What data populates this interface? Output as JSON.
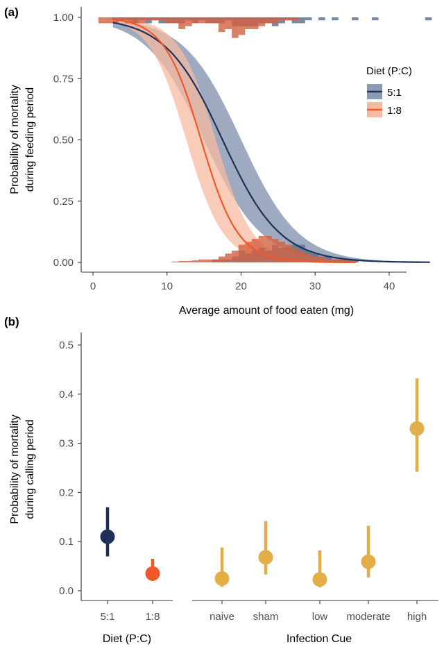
{
  "colors": {
    "diet_5_1": "#1e3059",
    "diet_5_1_ribbon": "#8c9bb5",
    "diet_1_8": "#f0582a",
    "diet_1_8_ribbon": "#f7b9a2",
    "hist_5_1": "#5f7296",
    "hist_1_8": "#d3603f",
    "infection": "#e2ae47",
    "axis": "#333333"
  },
  "chart_data": [
    {
      "panel": "(a)",
      "type": "line",
      "xlabel": "Average amount of food eaten (mg)",
      "ylabel": [
        "Probability of mortality",
        "during feeding period"
      ],
      "xlim": [
        -1.5,
        47
      ],
      "ylim": [
        -0.045,
        1.045
      ],
      "x_ticks": [
        0,
        10,
        20,
        30,
        40
      ],
      "y_ticks": [
        0.0,
        0.25,
        0.5,
        0.75,
        1.0
      ],
      "y_tick_labels": [
        "0.00",
        "0.25",
        "0.50",
        "0.75",
        "1.00"
      ],
      "legend": {
        "title": "Diet (P:C)",
        "position": "top-right",
        "entries": [
          "5:1",
          "1:8"
        ]
      },
      "series": [
        {
          "name": "5:1",
          "color_key": "diet_5_1",
          "ribbon_key": "diet_5_1_ribbon",
          "x_range": [
            2.7,
            45.5
          ],
          "midpoint": 17.5,
          "slope": 0.258,
          "ribbon_halfwidth_logit": 0.65
        },
        {
          "name": "1:8",
          "color_key": "diet_1_8",
          "ribbon_key": "diet_1_8_ribbon",
          "x_range": [
            2.7,
            35.5
          ],
          "midpoint": 14.6,
          "slope": 0.4,
          "ribbon_halfwidth_logit": 0.8
        }
      ],
      "histograms": {
        "bin_width": 0.9,
        "bar_unit_prob": 0.012,
        "top": [
          {
            "x": 1.2,
            "n5": 0,
            "n1": 2
          },
          {
            "x": 2.1,
            "n5": 0,
            "n1": 2
          },
          {
            "x": 3.0,
            "n5": 1,
            "n1": 2
          },
          {
            "x": 3.9,
            "n5": 1,
            "n1": 1
          },
          {
            "x": 4.8,
            "n5": 1,
            "n1": 2
          },
          {
            "x": 5.7,
            "n5": 2,
            "n1": 2
          },
          {
            "x": 6.6,
            "n5": 1,
            "n1": 2
          },
          {
            "x": 7.5,
            "n5": 2,
            "n1": 1
          },
          {
            "x": 8.4,
            "n5": 1,
            "n1": 1
          },
          {
            "x": 9.3,
            "n5": 2,
            "n1": 1
          },
          {
            "x": 10.2,
            "n5": 2,
            "n1": 2
          },
          {
            "x": 11.1,
            "n5": 2,
            "n1": 2
          },
          {
            "x": 12.0,
            "n5": 2,
            "n1": 4
          },
          {
            "x": 12.9,
            "n5": 1,
            "n1": 3
          },
          {
            "x": 13.8,
            "n5": 2,
            "n1": 2
          },
          {
            "x": 14.7,
            "n5": 1,
            "n1": 2
          },
          {
            "x": 15.6,
            "n5": 2,
            "n1": 2
          },
          {
            "x": 16.5,
            "n5": 2,
            "n1": 2
          },
          {
            "x": 17.4,
            "n5": 2,
            "n1": 5
          },
          {
            "x": 18.3,
            "n5": 1,
            "n1": 4
          },
          {
            "x": 19.2,
            "n5": 3,
            "n1": 7
          },
          {
            "x": 20.1,
            "n5": 3,
            "n1": 6
          },
          {
            "x": 21.0,
            "n5": 3,
            "n1": 4
          },
          {
            "x": 21.9,
            "n5": 3,
            "n1": 4
          },
          {
            "x": 22.8,
            "n5": 2,
            "n1": 3
          },
          {
            "x": 23.7,
            "n5": 2,
            "n1": 2
          },
          {
            "x": 24.6,
            "n5": 3,
            "n1": 2
          },
          {
            "x": 25.5,
            "n5": 2,
            "n1": 1
          },
          {
            "x": 26.4,
            "n5": 1,
            "n1": 1
          },
          {
            "x": 27.3,
            "n5": 2,
            "n1": 1
          },
          {
            "x": 28.2,
            "n5": 2,
            "n1": 0
          },
          {
            "x": 29.1,
            "n5": 1,
            "n1": 0
          },
          {
            "x": 30.9,
            "n5": 1,
            "n1": 0
          },
          {
            "x": 32.7,
            "n5": 1,
            "n1": 0
          },
          {
            "x": 35.4,
            "n5": 1,
            "n1": 0
          },
          {
            "x": 38.1,
            "n5": 1,
            "n1": 0
          },
          {
            "x": 45.3,
            "n5": 1,
            "n1": 0
          }
        ],
        "bottom": [
          {
            "x": 11.1,
            "n5": 0,
            "n1": 0.3
          },
          {
            "x": 12.0,
            "n5": 0,
            "n1": 0.5
          },
          {
            "x": 12.9,
            "n5": 0,
            "n1": 0.5
          },
          {
            "x": 13.8,
            "n5": 0,
            "n1": 0.7
          },
          {
            "x": 14.7,
            "n5": 0,
            "n1": 1
          },
          {
            "x": 15.6,
            "n5": 0,
            "n1": 1
          },
          {
            "x": 16.5,
            "n5": 1,
            "n1": 1
          },
          {
            "x": 17.4,
            "n5": 1,
            "n1": 2
          },
          {
            "x": 18.3,
            "n5": 1,
            "n1": 3
          },
          {
            "x": 19.2,
            "n5": 2,
            "n1": 4
          },
          {
            "x": 20.1,
            "n5": 4,
            "n1": 6
          },
          {
            "x": 21.0,
            "n5": 3,
            "n1": 7
          },
          {
            "x": 21.9,
            "n5": 4,
            "n1": 8
          },
          {
            "x": 22.8,
            "n5": 5,
            "n1": 9
          },
          {
            "x": 23.7,
            "n5": 4,
            "n1": 9
          },
          {
            "x": 24.6,
            "n5": 6,
            "n1": 8
          },
          {
            "x": 25.5,
            "n5": 5,
            "n1": 7
          },
          {
            "x": 26.4,
            "n5": 5,
            "n1": 6
          },
          {
            "x": 27.3,
            "n5": 6,
            "n1": 5
          },
          {
            "x": 28.2,
            "n5": 6,
            "n1": 4
          },
          {
            "x": 29.1,
            "n5": 4,
            "n1": 3
          },
          {
            "x": 30.0,
            "n5": 3,
            "n1": 2
          },
          {
            "x": 30.9,
            "n5": 2,
            "n1": 2
          },
          {
            "x": 31.8,
            "n5": 2,
            "n1": 1
          },
          {
            "x": 32.7,
            "n5": 1,
            "n1": 1
          },
          {
            "x": 33.6,
            "n5": 1,
            "n1": 1
          },
          {
            "x": 34.5,
            "n5": 1,
            "n1": 0.5
          },
          {
            "x": 35.4,
            "n5": 1,
            "n1": 0.3
          }
        ]
      }
    },
    {
      "panel": "(b)",
      "type": "scatter",
      "ylabel": [
        "Probability of mortality",
        "during calling period"
      ],
      "ylim": [
        -0.02,
        0.525
      ],
      "y_ticks": [
        0.0,
        0.1,
        0.2,
        0.3,
        0.4,
        0.5
      ],
      "y_tick_labels": [
        "0.0",
        "0.1",
        "0.2",
        "0.3",
        "0.4",
        "0.5"
      ],
      "groups": [
        {
          "xlabel": "Diet (P:C)",
          "categories": [
            "5:1",
            "1:8"
          ],
          "points": [
            {
              "label": "5:1",
              "value": 0.11,
              "low": 0.07,
              "high": 0.17,
              "color_key": "diet_5_1"
            },
            {
              "label": "1:8",
              "value": 0.035,
              "low": 0.02,
              "high": 0.065,
              "color_key": "diet_1_8"
            }
          ]
        },
        {
          "xlabel": "Infection Cue",
          "categories": [
            "naive",
            "sham",
            "low",
            "moderate",
            "high"
          ],
          "points": [
            {
              "label": "naive",
              "value": 0.025,
              "low": 0.008,
              "high": 0.088,
              "color_key": "infection"
            },
            {
              "label": "sham",
              "value": 0.068,
              "low": 0.033,
              "high": 0.142,
              "color_key": "infection"
            },
            {
              "label": "low",
              "value": 0.023,
              "low": 0.007,
              "high": 0.082,
              "color_key": "infection"
            },
            {
              "label": "moderate",
              "value": 0.059,
              "low": 0.027,
              "high": 0.132,
              "color_key": "infection"
            },
            {
              "label": "high",
              "value": 0.33,
              "low": 0.242,
              "high": 0.432,
              "color_key": "infection"
            }
          ]
        }
      ]
    }
  ]
}
